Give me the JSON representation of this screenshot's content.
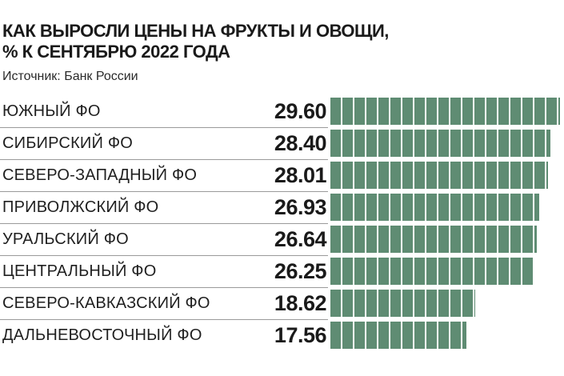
{
  "chart_data": {
    "type": "bar",
    "orientation": "horizontal",
    "title_lines": [
      "КАК ВЫРОСЛИ ЦЕНЫ НА ФРУКТЫ И ОВОЩИ,",
      "% К СЕНТЯБРЮ 2022 ГОДА"
    ],
    "source": "Источник: Банк России",
    "categories": [
      "ЮЖНЫЙ ФО",
      "СИБИРСКИЙ ФО",
      "СЕВЕРО-ЗАПАДНЫЙ ФО",
      "ПРИВОЛЖСКИЙ ФО",
      "УРАЛЬСКИЙ ФО",
      "ЦЕНТРАЛЬНЫЙ ФО",
      "СЕВЕРО-КАВКАЗСКИЙ ФО",
      "ДАЛЬНЕВОСТОЧНЫЙ ФО"
    ],
    "values": [
      29.6,
      28.4,
      28.01,
      26.93,
      26.64,
      26.25,
      18.62,
      17.56
    ],
    "value_labels": [
      "29.60",
      "28.40",
      "28.01",
      "26.93",
      "26.64",
      "26.25",
      "18.62",
      "17.56"
    ],
    "bar_color": "#5f8c73"
  }
}
